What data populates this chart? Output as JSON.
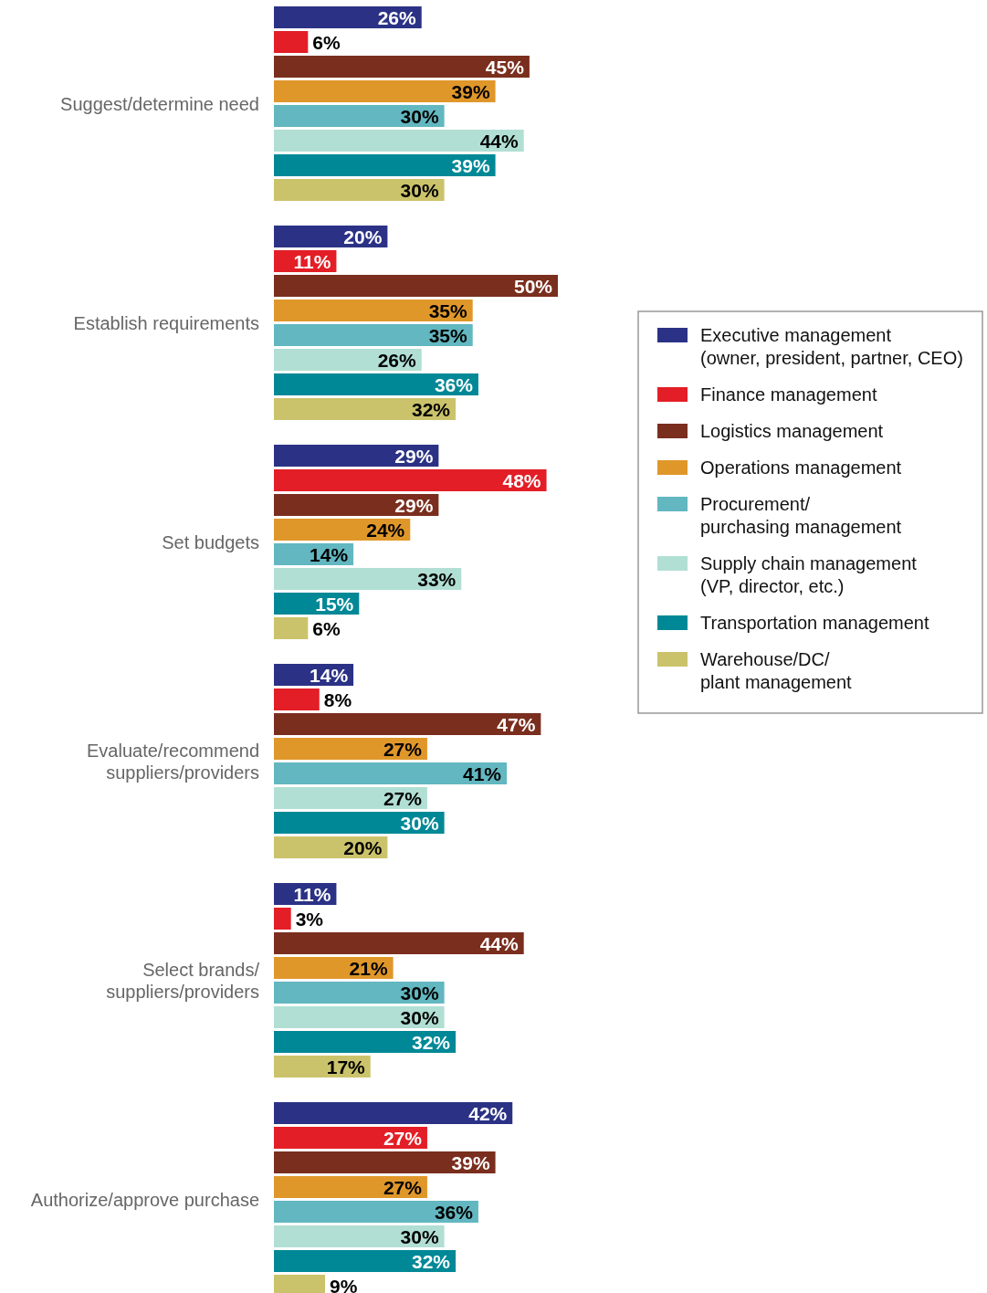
{
  "chart_data": {
    "type": "bar",
    "orientation": "horizontal",
    "legend": "right",
    "categories": [
      "Suggest/determine need",
      "Establish requirements",
      "Set budgets",
      "Evaluate/recommend\nsuppliers/providers",
      "Select brands/\nsuppliers/providers",
      "Authorize/approve purchase"
    ],
    "series": [
      {
        "name": "Executive management\n(owner, president, partner, CEO)",
        "color": "#2b3285",
        "values": [
          26,
          20,
          29,
          14,
          11,
          42
        ],
        "value_labels": [
          "26%",
          "20%",
          "29%",
          "14%",
          "11%",
          "42%"
        ]
      },
      {
        "name": "Finance management",
        "color": "#e31e26",
        "values": [
          6,
          11,
          48,
          8,
          3,
          27
        ],
        "value_labels": [
          "6%",
          "11%",
          "48%",
          "8%",
          "3%",
          "27%"
        ]
      },
      {
        "name": "Logistics management",
        "color": "#7a2e1e",
        "values": [
          45,
          50,
          29,
          47,
          44,
          39
        ],
        "value_labels": [
          "45%",
          "50%",
          "29%",
          "47%",
          "44%",
          "39%"
        ]
      },
      {
        "name": "Operations management",
        "color": "#e0972a",
        "values": [
          39,
          35,
          24,
          27,
          21,
          27
        ],
        "value_labels": [
          "39%",
          "35%",
          "24%",
          "27%",
          "21%",
          "27%"
        ]
      },
      {
        "name": "Procurement/\npurchasing management",
        "color": "#62b7c0",
        "values": [
          30,
          35,
          14,
          41,
          30,
          36
        ],
        "value_labels": [
          "30%",
          "35%",
          "14%",
          "41%",
          "30%",
          "36%"
        ]
      },
      {
        "name": "Supply chain management\n(VP, director, etc.)",
        "color": "#b1dfd3",
        "values": [
          44,
          26,
          33,
          27,
          30,
          30
        ],
        "value_labels": [
          "44%",
          "26%",
          "33%",
          "27%",
          "30%",
          "30%"
        ]
      },
      {
        "name": "Transportation management",
        "color": "#008896",
        "values": [
          39,
          36,
          15,
          30,
          32,
          32
        ],
        "value_labels": [
          "39%",
          "36%",
          "15%",
          "30%",
          "32%",
          "32%"
        ]
      },
      {
        "name": "Warehouse/DC/\nplant management",
        "color": "#cbc36b",
        "values": [
          30,
          32,
          6,
          20,
          17,
          9
        ],
        "value_labels": [
          "30%",
          "32%",
          "6%",
          "20%",
          "17%",
          "9%"
        ]
      }
    ]
  }
}
